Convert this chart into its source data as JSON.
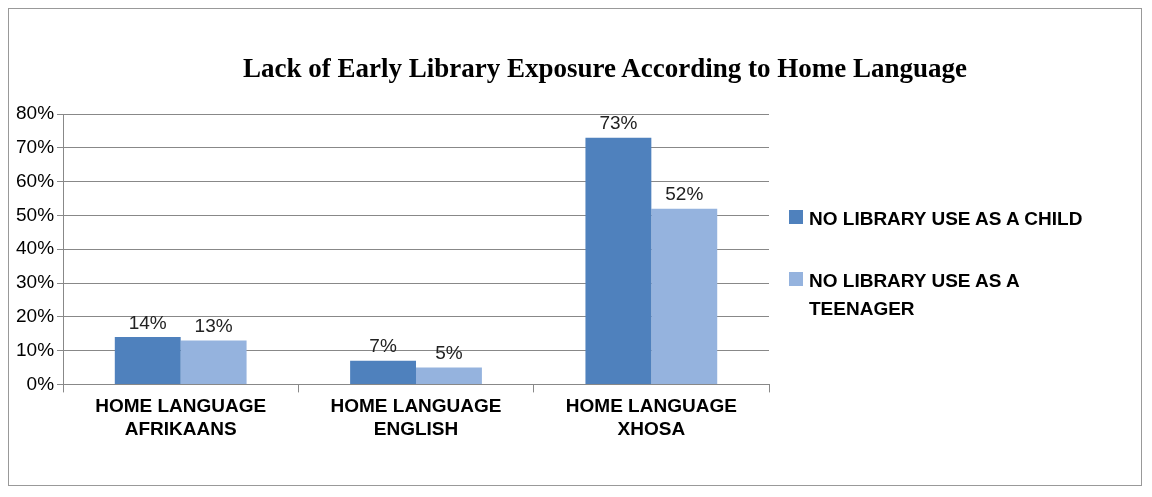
{
  "chart_data": {
    "type": "bar",
    "title": "Lack of Early Library Exposure According to Home Language",
    "categories": [
      "HOME LANGUAGE AFRIKAANS",
      "HOME LANGUAGE ENGLISH",
      "HOME LANGUAGE XHOSA"
    ],
    "series": [
      {
        "name": "NO LIBRARY USE AS A CHILD",
        "color": "#4f81bd",
        "values": [
          14,
          7,
          73
        ],
        "value_labels": [
          "14%",
          "7%",
          "73%"
        ]
      },
      {
        "name": "NO LIBRARY USE AS A TEENAGER",
        "color": "#95b3de",
        "values": [
          13,
          5,
          52
        ],
        "value_labels": [
          "13%",
          "5%",
          "52%"
        ]
      }
    ],
    "ylim": [
      0,
      80
    ],
    "yticks": [
      {
        "value": 0,
        "label": "0%"
      },
      {
        "value": 10,
        "label": "10%"
      },
      {
        "value": 20,
        "label": "20%"
      },
      {
        "value": 30,
        "label": "30%"
      },
      {
        "value": 40,
        "label": "40%"
      },
      {
        "value": 50,
        "label": "50%"
      },
      {
        "value": 60,
        "label": "60%"
      },
      {
        "value": 70,
        "label": "70%"
      },
      {
        "value": 80,
        "label": "80%"
      }
    ],
    "grid": "y",
    "legend": "right"
  }
}
